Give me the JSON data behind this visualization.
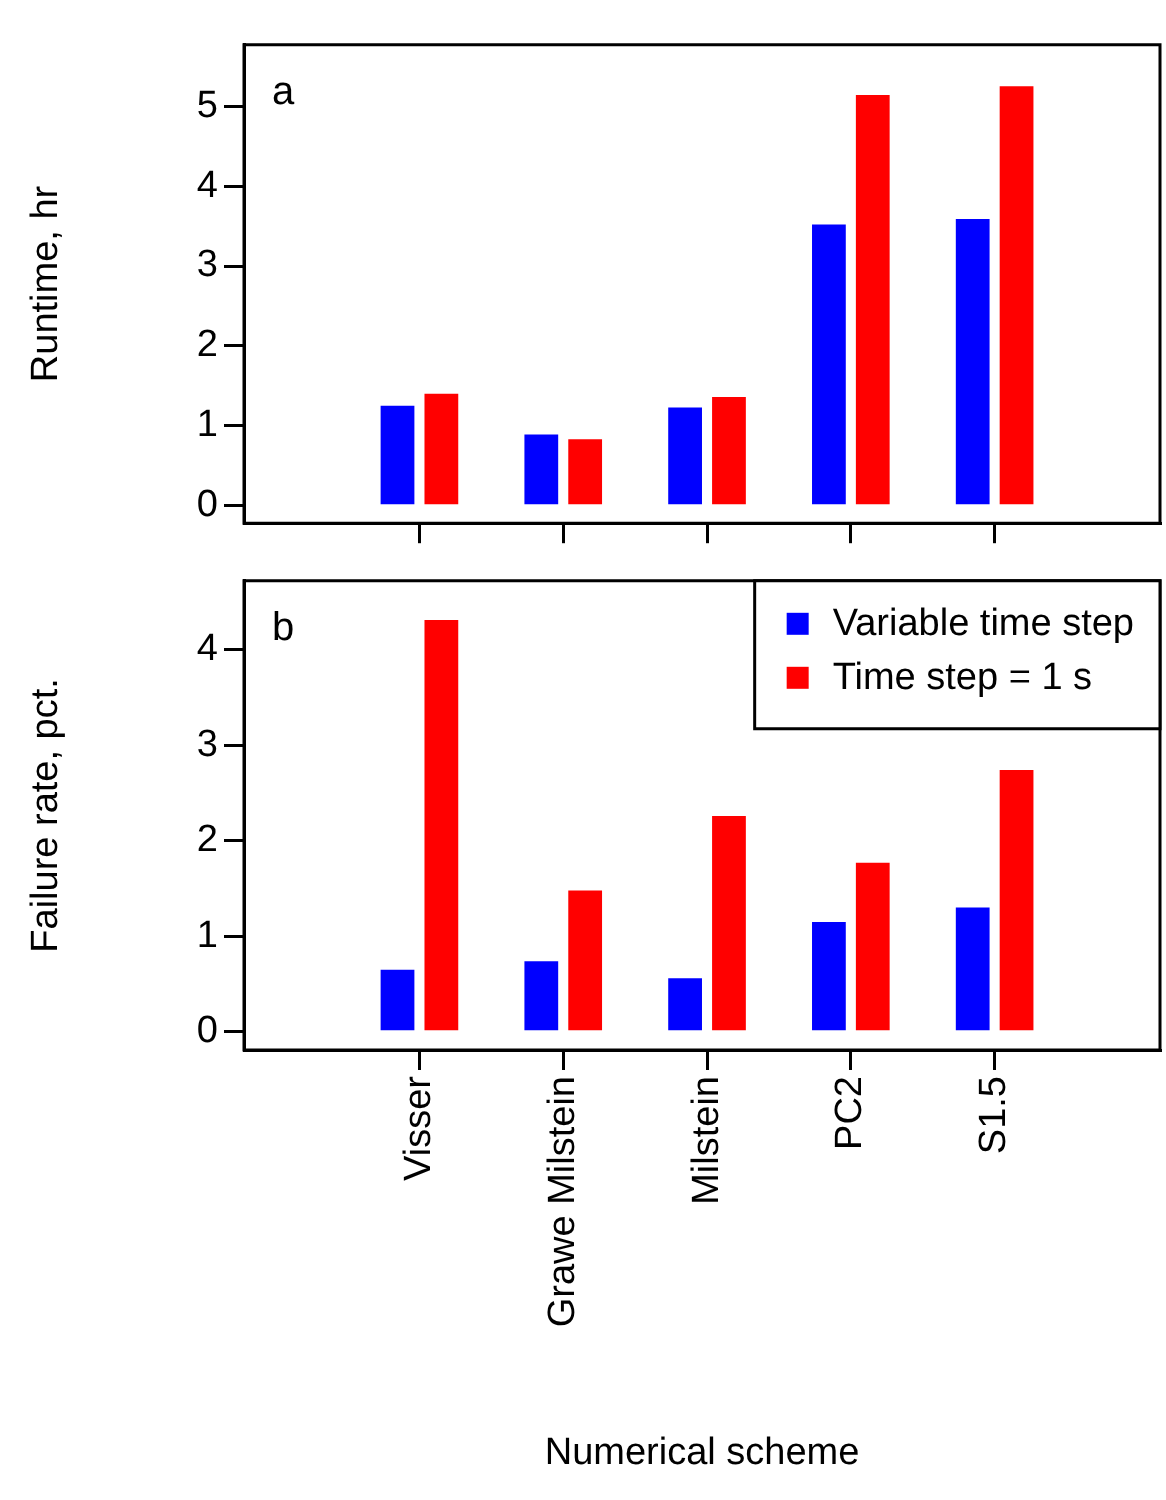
{
  "chart_data": [
    {
      "type": "bar",
      "categories": [
        null,
        null,
        null,
        null,
        null
      ],
      "ylabel": "Runtime, hr",
      "annotations": [
        "a"
      ],
      "series": [
        {
          "color": "#0000ff",
          "values": [
            1.25,
            0.89,
            1.23,
            3.52,
            3.59
          ]
        },
        {
          "color": "#ff0000",
          "values": [
            1.4,
            0.83,
            1.36,
            5.14,
            5.25
          ]
        }
      ],
      "ylim": [
        -0.22,
        5.77
      ],
      "yticks": [
        0,
        1,
        2,
        3,
        4,
        5
      ],
      "tick_labels": "y",
      "legend": false
    },
    {
      "type": "bar",
      "categories": [
        "Visser",
        "Grawe Milstein",
        "Milstein",
        "PC2",
        "S1.5"
      ],
      "xlabel": "Numerical scheme",
      "ylabel": "Failure rate, pct.",
      "annotations": [
        "b"
      ],
      "series": [
        {
          "name": "Variable time step",
          "color": "#0000ff",
          "values": [
            0.65,
            0.74,
            0.56,
            1.15,
            1.3
          ]
        },
        {
          "name": "Time step = 1 s",
          "color": "#ff0000",
          "values": [
            4.31,
            1.48,
            2.26,
            1.77,
            2.74
          ]
        }
      ],
      "ylim": [
        -0.19,
        4.72
      ],
      "yticks": [
        0,
        1,
        2,
        3,
        4
      ],
      "legend": "top right"
    }
  ]
}
